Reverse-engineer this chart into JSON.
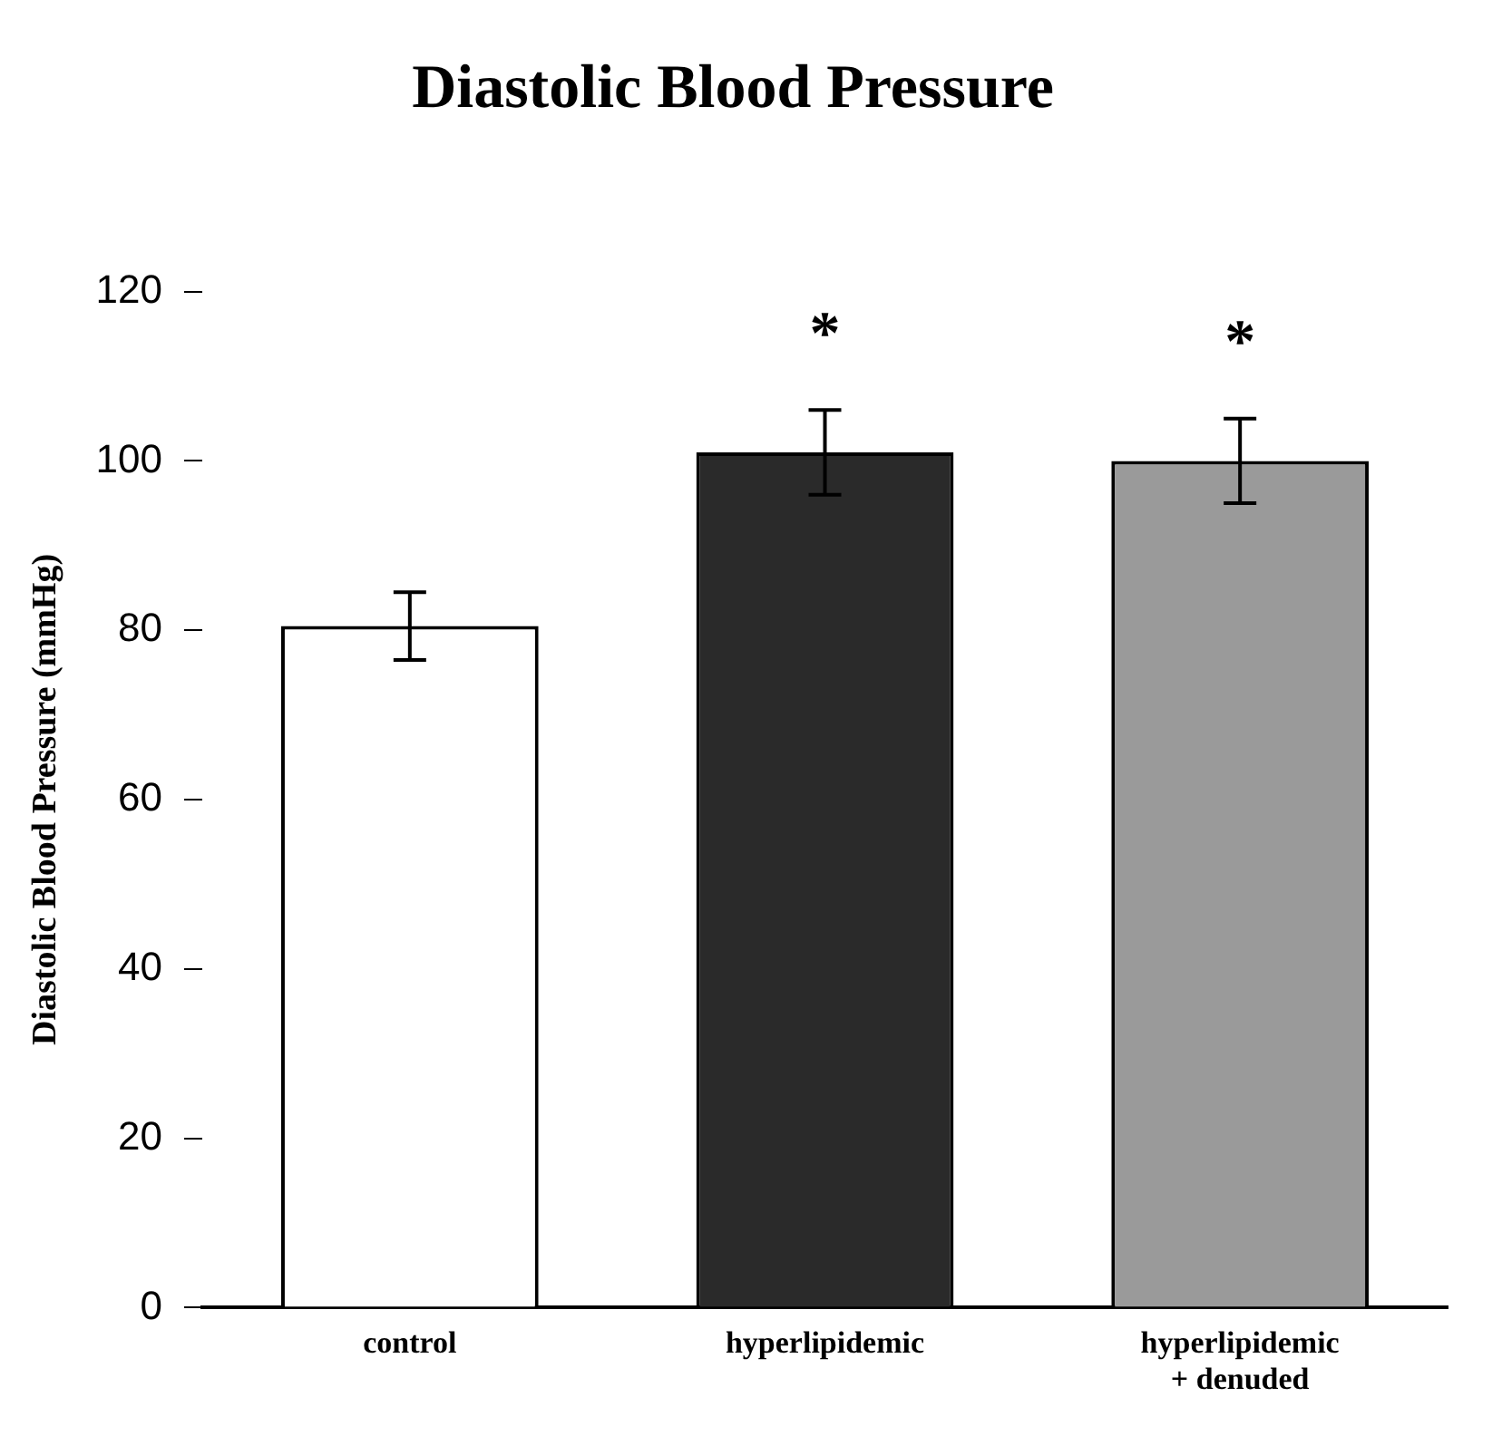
{
  "chart_data": {
    "type": "bar",
    "title": "Diastolic Blood Pressure",
    "ylabel": "Diastolic Blood Pressure (mmHg)",
    "categories": [
      "control",
      "hyperlipidemic",
      "hyperlipidemic\n+ denuded"
    ],
    "values": [
      80.5,
      101,
      100
    ],
    "colors": [
      "#ffffff",
      "#2a2a2a",
      "#9a9a9a"
    ],
    "errors": [
      4,
      5,
      5
    ],
    "ylim": [
      0,
      120
    ],
    "yticks": [
      0,
      20,
      40,
      60,
      80,
      100,
      120
    ],
    "grid": false,
    "annotations": [
      {
        "text": "*",
        "x": "hyperlipidemic",
        "y": 106
      },
      {
        "text": "*",
        "x": "hyperlipidemic\n+ denuded",
        "y": 105
      }
    ]
  }
}
